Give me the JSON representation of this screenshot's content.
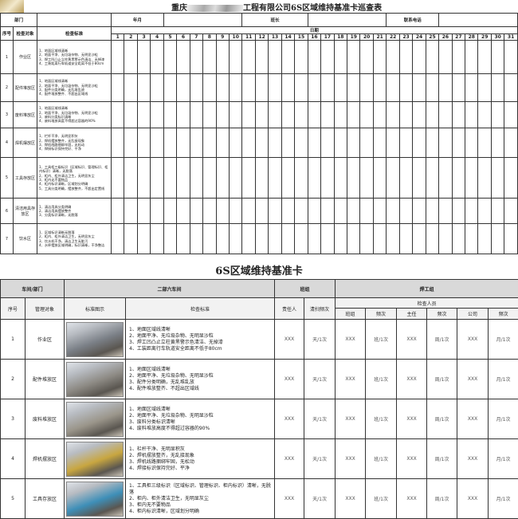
{
  "sheet1": {
    "title_prefix": "重庆",
    "title_suffix": "工程有限公司6S区域维持基准卡巡查表",
    "dept_label": "部门",
    "yearmonth_label": "年月",
    "leader_label": "班长",
    "phone_label": "联系电话",
    "col_no": "序号",
    "col_object": "检查对象",
    "col_standard": "检查标准",
    "date_label": "日期",
    "days": [
      "1",
      "2",
      "3",
      "4",
      "5",
      "6",
      "7",
      "8",
      "9",
      "10",
      "11",
      "12",
      "13",
      "14",
      "15",
      "16",
      "17",
      "18",
      "19",
      "20",
      "21",
      "22",
      "23",
      "24",
      "25",
      "26",
      "27",
      "28",
      "29",
      "30",
      "31"
    ],
    "rows": [
      {
        "no": "1",
        "object": "作业区",
        "standard": [
          "1、地面区域线清晰",
          "2、地面平净、无垃圾杂物、无明显沙粒",
          "3、焊工凹凸止立柱黄黑警示色清洁、无掉漆",
          "4、工装距离行车轨道安全距离不低于80cm"
        ]
      },
      {
        "no": "2",
        "object": "配件堆放区",
        "standard": [
          "1、地面区域线清晰",
          "2、地面平净、无垃圾杂物、无明显沙粒",
          "3、配件分类明确，无乱堆乱放",
          "4、配件堆放整齐、不超出区域线"
        ]
      },
      {
        "no": "3",
        "object": "废料堆放区",
        "standard": [
          "1、地面区域线清晰",
          "2、地面平净、无垃圾杂物、无明显沙粒",
          "3、废料分类标识清晰",
          "4、废料堆放高度不得超过容器的90%"
        ]
      },
      {
        "no": "4",
        "object": "焊机摆放区",
        "standard": [
          "1、栏杆干净、无明显积灰",
          "2、焊机摆放整齐，无乱接现象",
          "3、焊机线路捆绑牢固，无松动",
          "4、焊接标识保持完好、平净"
        ]
      },
      {
        "no": "5",
        "object": "工具存放区",
        "standard": [
          "1、工具柜三级标识（区域标识、管理标识、柜内标识）清晰，无脱落",
          "2、柜内、柜外清洁卫生，无明显灰尘",
          "3、柜内无不要物品",
          "4、柜内标识清晰，区域划分明确",
          "5、工具分类明确，摆放整齐，不超出定置线"
        ]
      },
      {
        "no": "6",
        "object": "清洁用具存放区",
        "standard": [
          "1、清洁用具分类明确",
          "2、清洁用具摆放整齐",
          "3、分类标识清晰，无脱落"
        ]
      },
      {
        "no": "7",
        "object": "饮水区",
        "standard": [
          "1、区域标识清晰无脱落",
          "2、柜内、柜外清洁卫生，无明显灰尘",
          "3、饮水机干净，清洁卫生无脏污",
          "4、水杯摆放区域明确，标识清晰，干净整洁"
        ]
      }
    ]
  },
  "sheet2": {
    "title": "6S区域维持基准卡",
    "dept_label": "车间/部门",
    "dept_value": "二部六车间",
    "team_label": "班组",
    "team_value": "焊工组",
    "col_no": "序号",
    "col_object": "管理对象",
    "col_image": "标准图示",
    "col_standard": "检查标准",
    "col_owner": "责任人",
    "col_freq": "清扫频次",
    "inspectors_label": "检查人员",
    "sub_cols": [
      "班组",
      "频次",
      "主任",
      "频次",
      "公司",
      "频次"
    ],
    "rows": [
      {
        "no": "1",
        "object": "作业区",
        "standard": [
          "1、地面区域线清晰",
          "2、地面平净、无垃圾杂物、无明显沙粒",
          "3、焊工凹凸止立柱黄黑警示色清洁、无掉漆",
          "4、工装距离行车轨道安全距离不低于80cm"
        ],
        "cells": [
          "XXX",
          "天/1次",
          "XXX",
          "班/1次",
          "XXX",
          "周/1次",
          "XXX",
          "月/1次"
        ]
      },
      {
        "no": "2",
        "object": "配件堆放区",
        "standard": [
          "1、地面区域线清晰",
          "2、地面平净、无垃圾杂物、无明显沙粒",
          "3、配件分类明确，无乱堆乱放",
          "4、配件堆放整齐、不超出区域线"
        ],
        "cells": [
          "XXX",
          "天/1次",
          "XXX",
          "班/1次",
          "XXX",
          "周/1次",
          "XXX",
          "月/1次"
        ]
      },
      {
        "no": "3",
        "object": "废料堆放区",
        "standard": [
          "1、地面区域线清晰",
          "2、地面平净、无垃圾杂物、无明显沙粒",
          "3、废料分类标识清晰",
          "4、废料堆放高度不得超过容器的90%"
        ],
        "cells": [
          "XXX",
          "天/1次",
          "XXX",
          "班/1次",
          "XXX",
          "周/1次",
          "XXX",
          "月/1次"
        ]
      },
      {
        "no": "4",
        "object": "焊机摆放区",
        "standard": [
          "1、栏杆干净、无明显积灰",
          "2、焊机摆放整齐，无乱接现象",
          "3、焊机线路捆绑牢固，无松动",
          "4、焊接标识保持完好、平净"
        ],
        "cells": [
          "XXX",
          "天/1次",
          "XXX",
          "班/1次",
          "XXX",
          "周/1次",
          "XXX",
          "月/1次"
        ]
      },
      {
        "no": "5",
        "object": "工具存放区",
        "standard": [
          "1、工具柜三级标识（区域标识、管理标识、柜内标识）清晰，无脱落",
          "2、柜内、柜外清洁卫生，无明显灰尘",
          "3、柜内无不要物品",
          "4、柜内标识清晰，区域划分明确"
        ],
        "cells": [
          "XXX",
          "天/1次",
          "XXX",
          "班/1次",
          "XXX",
          "周/1次",
          "XXX",
          "月/1次"
        ]
      }
    ],
    "image_colors": [
      "#7a7f86",
      "#8d8a84",
      "#9a958a",
      "#c8a640",
      "#3e8fb8"
    ]
  }
}
